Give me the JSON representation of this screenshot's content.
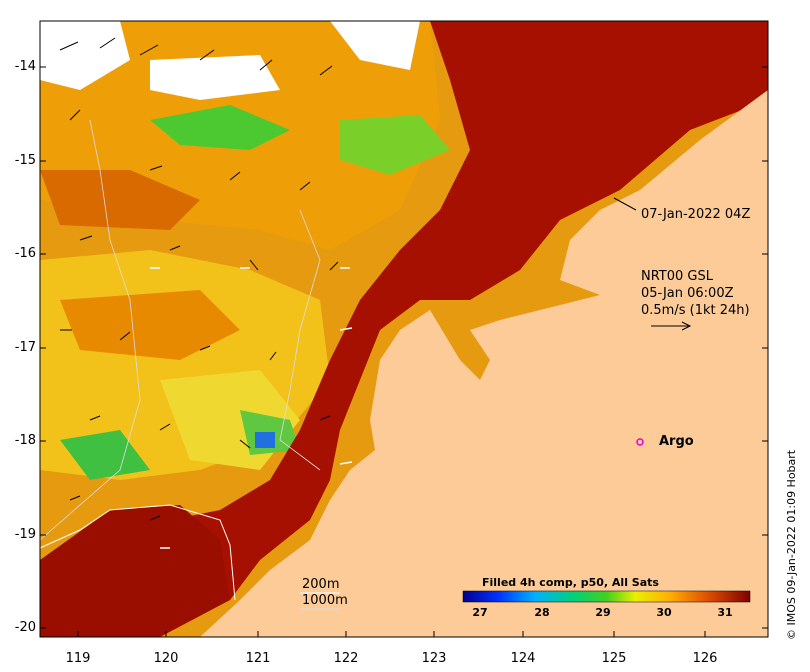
{
  "map": {
    "vector_label": {
      "line1": "NRT00 GSL",
      "line2": "05-Jan 06:00Z",
      "line3": "0.5m/s (1kt 24h)"
    },
    "date_label": "07-Jan-2022 04Z",
    "argo_label": "Argo",
    "contours": {
      "c200": "200m",
      "c1000": "1000m"
    },
    "colorbar_title": "Filled 4h comp, p50, All Sats",
    "credit": "© IMOS 09-Jan-2022 01:09 Hobart",
    "yticks": [
      "-14",
      "-15",
      "-16",
      "-17",
      "-18",
      "-19",
      "-20"
    ],
    "xticks": [
      "119",
      "120",
      "121",
      "122",
      "123",
      "124",
      "125",
      "126"
    ],
    "cbticks": [
      "27",
      "28",
      "29",
      "30",
      "31"
    ]
  },
  "colors": {
    "land": "#fccb98",
    "hot": "#a50f00",
    "warm": "#de6e00",
    "mid": "#f5a800",
    "cool": "#f2df1a",
    "green": "#2fbf2f",
    "argo": "#e000e0"
  }
}
